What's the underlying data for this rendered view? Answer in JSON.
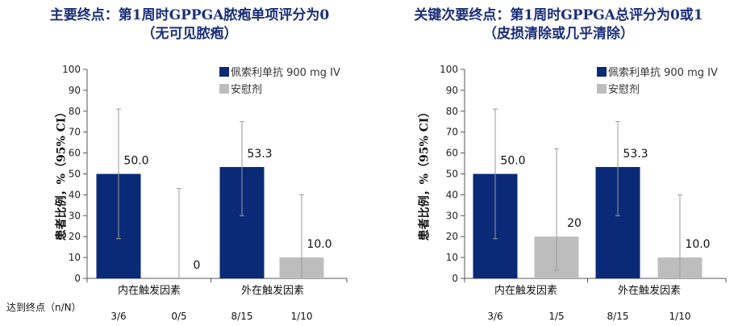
{
  "n_label": "达到终点（n/N）",
  "colors": {
    "treatment": "#0a2a78",
    "placebo": "#bdbdbd",
    "title": "#1b2f78",
    "error": "#9a9a9a"
  },
  "chart_data": [
    {
      "type": "bar",
      "title": [
        "主要终点：第1周时GPPGA脓疱单项评分为0",
        "（无可见脓疱）"
      ],
      "ylabel": "患者比例，%（95% CI）",
      "ylim": [
        0,
        100
      ],
      "yticks": [
        0,
        10,
        20,
        30,
        40,
        50,
        60,
        70,
        80,
        90,
        100
      ],
      "categories": [
        "内在触发因素",
        "外在触发因素"
      ],
      "legend": [
        "佩索利单抗 900 mg IV",
        "安慰剂"
      ],
      "series": [
        {
          "name": "佩索利单抗 900 mg IV",
          "values": [
            50.0,
            53.3
          ],
          "labels": [
            "50.0",
            "53.3"
          ],
          "ci": [
            [
              19,
              81
            ],
            [
              30,
              75
            ]
          ],
          "n": [
            "3/6",
            "8/15"
          ]
        },
        {
          "name": "安慰剂",
          "values": [
            0,
            10.0
          ],
          "labels": [
            "0",
            "10.0"
          ],
          "ci": [
            [
              0,
              43
            ],
            [
              0,
              40
            ]
          ],
          "n": [
            "0/5",
            "1/10"
          ]
        }
      ]
    },
    {
      "type": "bar",
      "title": [
        "关键次要终点：第1周时GPPGA总评分为0或1",
        "（皮损清除或几乎清除）"
      ],
      "ylabel": "患者比例，%（95% CI）",
      "ylim": [
        0,
        100
      ],
      "yticks": [
        0,
        10,
        20,
        30,
        40,
        50,
        60,
        70,
        80,
        90,
        100
      ],
      "categories": [
        "内在触发因素",
        "外在触发因素"
      ],
      "legend": [
        "佩索利单抗 900 mg IV",
        "安慰剂"
      ],
      "series": [
        {
          "name": "佩索利单抗 900 mg IV",
          "values": [
            50.0,
            53.3
          ],
          "labels": [
            "50.0",
            "53.3"
          ],
          "ci": [
            [
              19,
              81
            ],
            [
              30,
              75
            ]
          ],
          "n": [
            "3/6",
            "8/15"
          ]
        },
        {
          "name": "安慰剂",
          "values": [
            20,
            10.0
          ],
          "labels": [
            "20",
            "10.0"
          ],
          "ci": [
            [
              4,
              62
            ],
            [
              0,
              40
            ]
          ],
          "n": [
            "1/5",
            "1/10"
          ]
        }
      ]
    }
  ]
}
